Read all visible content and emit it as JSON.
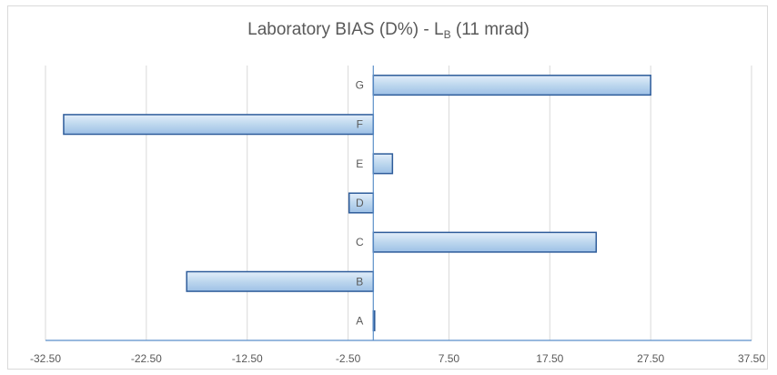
{
  "chart_data": {
    "type": "bar",
    "orientation": "horizontal",
    "title": {
      "main": "Laboratory  BIAS (D%) - L",
      "subscript": "B",
      "suffix": " (11 mrad)"
    },
    "categories": [
      "A",
      "B",
      "C",
      "D",
      "E",
      "F",
      "G"
    ],
    "values": [
      0.1,
      -18.5,
      22.1,
      -2.4,
      1.9,
      -30.7,
      27.5
    ],
    "xlim": [
      -32.5,
      37.5
    ],
    "xticks": [
      "-32.50",
      "-22.50",
      "-12.50",
      "-2.50",
      "7.50",
      "17.50",
      "27.50",
      "37.50"
    ],
    "grid": true,
    "legend": "none",
    "bar_color": "#bdd7ee",
    "bar_edge": "#2e5c9a"
  }
}
